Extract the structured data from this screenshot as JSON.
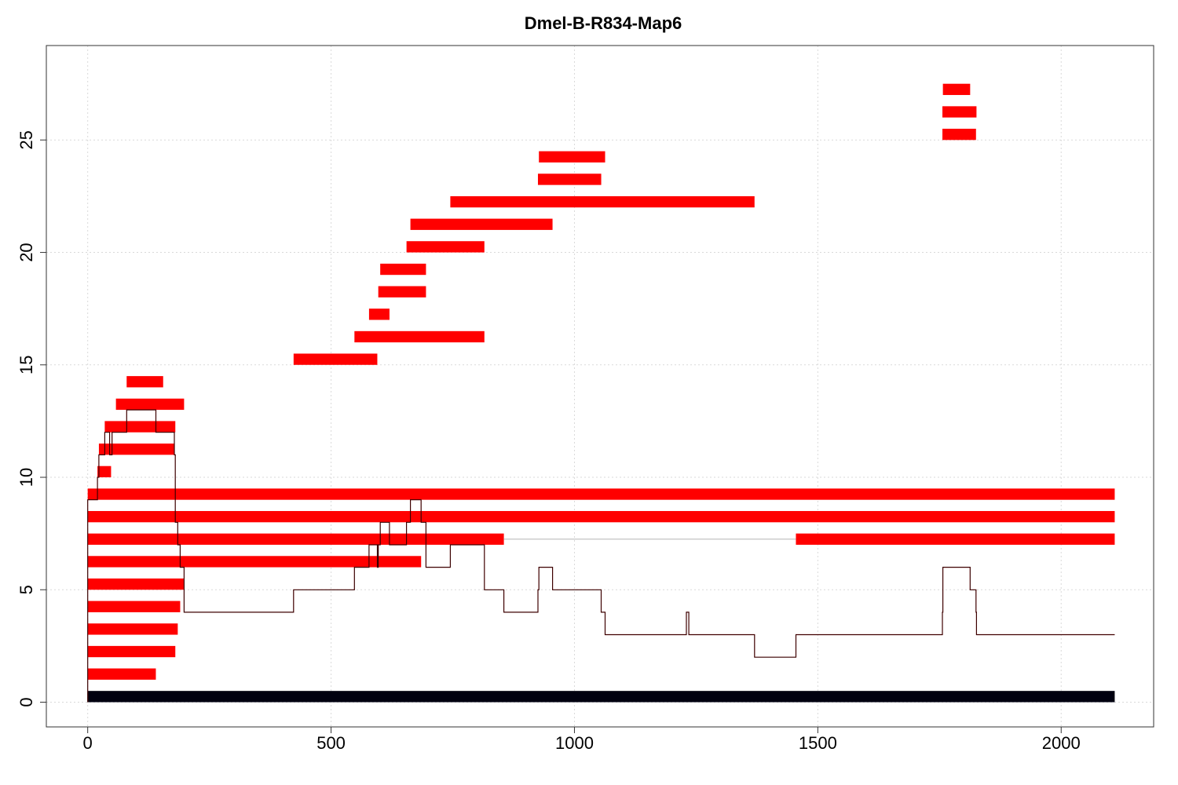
{
  "chart_data": {
    "type": "bar",
    "title": "Dmel-B-R834-Map6",
    "xlabel": "",
    "ylabel": "",
    "xlim": [
      -85,
      2190
    ],
    "ylim": [
      -1.1,
      29.2
    ],
    "xticks": [
      0,
      500,
      1000,
      1500,
      2000
    ],
    "yticks": [
      0,
      5,
      10,
      15,
      20,
      25
    ],
    "xtick_labels": [
      "0",
      "500",
      "1000",
      "1500",
      "2000"
    ],
    "ytick_labels": [
      "0",
      "5",
      "10",
      "15",
      "20",
      "25"
    ],
    "grid": true,
    "colors": {
      "segment": "#ff0000",
      "reference": "#000010",
      "coverage": "#5a0000",
      "gray_link": "#cccccc"
    },
    "reference_bar": {
      "start": 0,
      "end": 2110,
      "level": 0.25
    },
    "segments": [
      {
        "start": 0,
        "end": 140,
        "level": 1.25
      },
      {
        "start": 0,
        "end": 180,
        "level": 2.25
      },
      {
        "start": 0,
        "end": 185,
        "level": 3.25
      },
      {
        "start": 0,
        "end": 190,
        "level": 4.25
      },
      {
        "start": 0,
        "end": 198,
        "level": 5.25
      },
      {
        "start": 0,
        "end": 685,
        "level": 6.25
      },
      {
        "start": 0,
        "end": 855,
        "level": 7.25
      },
      {
        "start": 1455,
        "end": 2110,
        "level": 7.25
      },
      {
        "start": 0,
        "end": 2110,
        "level": 8.25
      },
      {
        "start": 0,
        "end": 2110,
        "level": 9.25
      },
      {
        "start": 20,
        "end": 48,
        "level": 10.25
      },
      {
        "start": 23,
        "end": 178,
        "level": 11.25
      },
      {
        "start": 35,
        "end": 180,
        "level": 12.25
      },
      {
        "start": 58,
        "end": 198,
        "level": 13.25
      },
      {
        "start": 80,
        "end": 155,
        "level": 14.25
      },
      {
        "start": 423,
        "end": 595,
        "level": 15.25
      },
      {
        "start": 548,
        "end": 815,
        "level": 16.25
      },
      {
        "start": 578,
        "end": 620,
        "level": 17.25
      },
      {
        "start": 597,
        "end": 695,
        "level": 18.25
      },
      {
        "start": 601,
        "end": 695,
        "level": 19.25
      },
      {
        "start": 655,
        "end": 815,
        "level": 20.25
      },
      {
        "start": 663,
        "end": 955,
        "level": 21.25
      },
      {
        "start": 745,
        "end": 1370,
        "level": 22.25
      },
      {
        "start": 925,
        "end": 1055,
        "level": 23.25
      },
      {
        "start": 927,
        "end": 1063,
        "level": 24.25
      },
      {
        "start": 1756,
        "end": 1825,
        "level": 25.25
      },
      {
        "start": 1756,
        "end": 1826,
        "level": 26.25
      },
      {
        "start": 1757,
        "end": 1813,
        "level": 27.25
      }
    ],
    "gray_link": {
      "start": 855,
      "end": 1455,
      "level": 7.25
    },
    "coverage_line": {
      "x": [
        0,
        0,
        20,
        20,
        23,
        23,
        35,
        35,
        45,
        45,
        50,
        50,
        58,
        58,
        80,
        80,
        140,
        140,
        155,
        155,
        178,
        178,
        180,
        180,
        185,
        185,
        190,
        190,
        198,
        198,
        423,
        423,
        548,
        548,
        578,
        578,
        595,
        595,
        597,
        597,
        601,
        601,
        620,
        620,
        655,
        655,
        663,
        663,
        685,
        685,
        695,
        695,
        745,
        745,
        815,
        815,
        855,
        855,
        925,
        925,
        927,
        927,
        955,
        955,
        1055,
        1055,
        1063,
        1063,
        1230,
        1230,
        1235,
        1235,
        1370,
        1370,
        1455,
        1455,
        1756,
        1756,
        1757,
        1757,
        1813,
        1813,
        1825,
        1825,
        1826,
        1826,
        2110
      ],
      "y": [
        0,
        9,
        9,
        10,
        10,
        11,
        11,
        12,
        12,
        11,
        11,
        12,
        12,
        12,
        12,
        13,
        13,
        12,
        12,
        12,
        12,
        11,
        11,
        8,
        8,
        7,
        7,
        6,
        6,
        4,
        4,
        5,
        5,
        6,
        6,
        7,
        7,
        6,
        6,
        7,
        7,
        8,
        8,
        7,
        7,
        8,
        8,
        9,
        9,
        8,
        8,
        6,
        6,
        7,
        7,
        5,
        5,
        4,
        4,
        5,
        5,
        6,
        6,
        5,
        5,
        4,
        4,
        3,
        3,
        4,
        4,
        3,
        3,
        2,
        2,
        3,
        3,
        4,
        4,
        6,
        6,
        5,
        5,
        4,
        4,
        3,
        3
      ]
    }
  }
}
